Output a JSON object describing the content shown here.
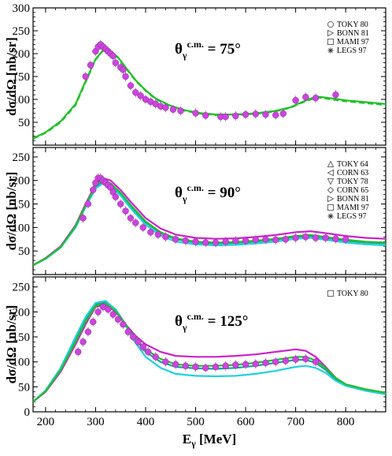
{
  "colors": {
    "green": "#22c02a",
    "magenta": "#cc22cc",
    "cyan": "#22d0e0",
    "teal": "#1aa09a",
    "dots": "#cc44dd",
    "axis": "#000000"
  },
  "chart_data": [
    {
      "type": "line",
      "panel": "top",
      "angle_label": {
        "theta": "θ",
        "sub": "γ",
        "sup": "c.m.",
        "value": " = 75°"
      },
      "ylabel": "dσ/dΩ [nb/sr]",
      "xlim": [
        175,
        880
      ],
      "ylim": [
        0,
        300
      ],
      "yticks": [
        "50",
        "100",
        "150",
        "200",
        "250",
        "300"
      ],
      "ytick_values": [
        50,
        100,
        150,
        200,
        250,
        300
      ],
      "legend": [
        {
          "marker": "circle",
          "label": "TOKY 80"
        },
        {
          "marker": "triangle-right",
          "label": "BONN 81"
        },
        {
          "marker": "square",
          "label": "MAMI 97"
        },
        {
          "marker": "star",
          "label": "LEGS 97"
        }
      ],
      "series": [
        {
          "color": "green",
          "dashed": false,
          "x": [
            175,
            200,
            230,
            260,
            280,
            300,
            315,
            330,
            345,
            360,
            380,
            400,
            420,
            450,
            480,
            510,
            540,
            570,
            600,
            630,
            660,
            690,
            710,
            730,
            745,
            760,
            780,
            800,
            830,
            860,
            880
          ],
          "y": [
            15,
            28,
            52,
            90,
            140,
            188,
            208,
            205,
            192,
            170,
            142,
            120,
            102,
            86,
            76,
            70,
            67,
            67,
            68,
            71,
            75,
            83,
            93,
            102,
            106,
            104,
            101,
            98,
            95,
            92,
            90
          ]
        },
        {
          "color": "green",
          "dashed": true,
          "x": [
            175,
            200,
            230,
            260,
            280,
            300,
            315,
            330,
            345,
            360,
            380,
            400,
            420,
            450,
            480,
            510,
            540,
            570,
            600,
            630,
            660,
            690,
            710,
            730,
            745,
            760,
            780,
            800,
            830,
            860,
            880
          ],
          "y": [
            14,
            27,
            50,
            88,
            138,
            187,
            207,
            204,
            191,
            169,
            141,
            119,
            101,
            85,
            75,
            69,
            66,
            66,
            67,
            70,
            74,
            82,
            92,
            100,
            104,
            102,
            99,
            96,
            93,
            90,
            88
          ]
        }
      ],
      "points": {
        "x": [
          280,
          290,
          300,
          305,
          310,
          315,
          320,
          325,
          330,
          335,
          340,
          350,
          355,
          360,
          370,
          380,
          390,
          400,
          410,
          420,
          430,
          440,
          455,
          470,
          500,
          520,
          550,
          560,
          580,
          600,
          620,
          640,
          660,
          675,
          700,
          720,
          740,
          780
        ],
        "y": [
          150,
          175,
          205,
          215,
          220,
          215,
          210,
          205,
          200,
          195,
          180,
          170,
          165,
          150,
          130,
          115,
          108,
          100,
          95,
          90,
          85,
          82,
          78,
          75,
          70,
          65,
          62,
          62,
          64,
          67,
          68,
          67,
          66,
          69,
          98,
          105,
          103,
          110
        ]
      }
    },
    {
      "type": "line",
      "panel": "middle",
      "angle_label": {
        "theta": "θ",
        "sub": "γ",
        "sup": "c.m.",
        "value": " = 90°"
      },
      "ylabel": "dσ/dΩ [nb/sr]",
      "xlim": [
        175,
        880
      ],
      "ylim": [
        0,
        270
      ],
      "yticks": [
        "50",
        "100",
        "150",
        "200",
        "250"
      ],
      "ytick_values": [
        50,
        100,
        150,
        200,
        250
      ],
      "legend": [
        {
          "marker": "triangle-up",
          "label": "TOKY 64"
        },
        {
          "marker": "triangle-left",
          "label": "CORN 63"
        },
        {
          "marker": "triangle-down",
          "label": "TOKY 78"
        },
        {
          "marker": "diamond",
          "label": "CORN 65"
        },
        {
          "marker": "triangle-right",
          "label": "BONN 81"
        },
        {
          "marker": "square",
          "label": "MAMI 97"
        },
        {
          "marker": "star",
          "label": "LEGS 97"
        }
      ],
      "series": [
        {
          "color": "magenta",
          "x": [
            175,
            200,
            230,
            260,
            280,
            300,
            315,
            330,
            350,
            370,
            400,
            430,
            460,
            500,
            540,
            580,
            620,
            660,
            700,
            730,
            760,
            800,
            840,
            880
          ],
          "y": [
            20,
            35,
            60,
            105,
            150,
            192,
            205,
            200,
            180,
            155,
            120,
            98,
            85,
            78,
            76,
            77,
            80,
            84,
            90,
            92,
            88,
            82,
            78,
            76
          ]
        },
        {
          "color": "teal",
          "x": [
            175,
            200,
            230,
            260,
            280,
            300,
            315,
            330,
            350,
            370,
            400,
            430,
            460,
            500,
            540,
            580,
            620,
            660,
            700,
            730,
            760,
            800,
            840,
            880
          ],
          "y": [
            20,
            34,
            58,
            102,
            146,
            187,
            198,
            192,
            172,
            146,
            111,
            88,
            75,
            68,
            66,
            67,
            70,
            74,
            80,
            82,
            78,
            72,
            68,
            66
          ]
        },
        {
          "color": "cyan",
          "x": [
            175,
            200,
            230,
            260,
            280,
            300,
            315,
            330,
            350,
            370,
            400,
            430,
            460,
            500,
            540,
            580,
            620,
            660,
            700,
            730,
            760,
            800,
            840,
            880
          ],
          "y": [
            20,
            33,
            57,
            100,
            143,
            183,
            194,
            188,
            168,
            141,
            106,
            83,
            70,
            64,
            62,
            63,
            66,
            70,
            76,
            78,
            74,
            68,
            64,
            62
          ]
        },
        {
          "color": "green",
          "x": [
            175,
            200,
            230,
            260,
            280,
            300,
            315,
            330,
            350,
            370,
            400,
            430,
            460,
            500,
            540,
            580,
            620,
            660,
            700,
            730,
            760,
            800,
            840,
            880
          ],
          "y": [
            20,
            34,
            58,
            103,
            147,
            189,
            200,
            194,
            174,
            148,
            113,
            90,
            77,
            70,
            68,
            69,
            72,
            76,
            82,
            84,
            80,
            74,
            70,
            68
          ]
        }
      ],
      "points": {
        "x": [
          275,
          285,
          295,
          300,
          305,
          310,
          315,
          320,
          325,
          330,
          335,
          340,
          350,
          360,
          370,
          380,
          395,
          410,
          425,
          440,
          460,
          480,
          500,
          520,
          540,
          560,
          580,
          600,
          620,
          640,
          660,
          680,
          700,
          720,
          740,
          760,
          780,
          800
        ],
        "y": [
          120,
          150,
          180,
          195,
          205,
          205,
          200,
          195,
          190,
          185,
          175,
          165,
          150,
          135,
          120,
          110,
          100,
          90,
          85,
          80,
          75,
          72,
          70,
          68,
          68,
          70,
          72,
          72,
          74,
          75,
          74,
          75,
          78,
          80,
          78,
          78,
          76,
          75
        ]
      }
    },
    {
      "type": "line",
      "panel": "bottom",
      "angle_label": {
        "theta": "θ",
        "sub": "γ",
        "sup": "c.m.",
        "value": " = 125°"
      },
      "ylabel": "dσ/dΩ [nb/sr]",
      "xlabel": "Eγ [MeV]",
      "xlabel_parts": {
        "main": "E",
        "sub": "γ",
        "unit": " [MeV]"
      },
      "xlim": [
        175,
        880
      ],
      "ylim": [
        0,
        270
      ],
      "yticks": [
        "0",
        "50",
        "100",
        "150",
        "200",
        "250"
      ],
      "ytick_values": [
        0,
        50,
        100,
        150,
        200,
        250
      ],
      "xticks": [
        "200",
        "300",
        "400",
        "500",
        "600",
        "700",
        "800"
      ],
      "xtick_values": [
        200,
        300,
        400,
        500,
        600,
        700,
        800
      ],
      "legend": [
        {
          "marker": "square",
          "label": "TOKY 80"
        }
      ],
      "series": [
        {
          "color": "magenta",
          "x": [
            175,
            200,
            230,
            260,
            280,
            300,
            320,
            340,
            360,
            380,
            400,
            430,
            460,
            500,
            540,
            580,
            620,
            660,
            700,
            720,
            740,
            760,
            780,
            800,
            840,
            880
          ],
          "y": [
            20,
            40,
            80,
            135,
            175,
            210,
            215,
            200,
            175,
            152,
            135,
            120,
            112,
            110,
            110,
            112,
            115,
            120,
            125,
            122,
            110,
            90,
            68,
            55,
            45,
            38
          ]
        },
        {
          "color": "teal",
          "x": [
            175,
            200,
            230,
            260,
            280,
            300,
            320,
            340,
            360,
            380,
            400,
            430,
            460,
            500,
            540,
            580,
            620,
            660,
            700,
            720,
            740,
            760,
            780,
            800,
            840,
            880
          ],
          "y": [
            20,
            42,
            85,
            145,
            185,
            215,
            220,
            205,
            175,
            145,
            120,
            100,
            90,
            87,
            86,
            88,
            92,
            98,
            104,
            104,
            98,
            84,
            65,
            53,
            43,
            36
          ]
        },
        {
          "color": "cyan",
          "x": [
            175,
            200,
            230,
            260,
            280,
            300,
            320,
            340,
            360,
            380,
            400,
            430,
            460,
            500,
            540,
            580,
            620,
            660,
            700,
            720,
            740,
            760,
            780,
            800,
            840,
            880
          ],
          "y": [
            20,
            43,
            88,
            150,
            190,
            218,
            222,
            205,
            172,
            138,
            110,
            88,
            76,
            72,
            71,
            72,
            76,
            82,
            90,
            92,
            88,
            78,
            62,
            52,
            42,
            35
          ]
        },
        {
          "color": "green",
          "x": [
            175,
            200,
            230,
            260,
            280,
            300,
            320,
            340,
            360,
            380,
            400,
            430,
            460,
            500,
            540,
            580,
            620,
            660,
            700,
            720,
            740,
            760,
            780,
            800,
            840,
            880
          ],
          "y": [
            20,
            41,
            83,
            140,
            180,
            212,
            217,
            202,
            174,
            147,
            125,
            106,
            95,
            92,
            92,
            94,
            98,
            104,
            110,
            110,
            103,
            88,
            68,
            55,
            45,
            38
          ]
        }
      ],
      "points": {
        "x": [
          265,
          275,
          285,
          295,
          305,
          315,
          325,
          335,
          345,
          355,
          365,
          375,
          385,
          395,
          405,
          420,
          440,
          460,
          480,
          500,
          520,
          540,
          560,
          580,
          600,
          620,
          640,
          660,
          680,
          700,
          720,
          740
        ],
        "y": [
          120,
          140,
          160,
          180,
          200,
          210,
          205,
          195,
          185,
          175,
          160,
          150,
          140,
          130,
          120,
          110,
          100,
          95,
          92,
          90,
          88,
          90,
          92,
          94,
          95,
          96,
          98,
          100,
          102,
          105,
          106,
          100
        ]
      }
    }
  ]
}
